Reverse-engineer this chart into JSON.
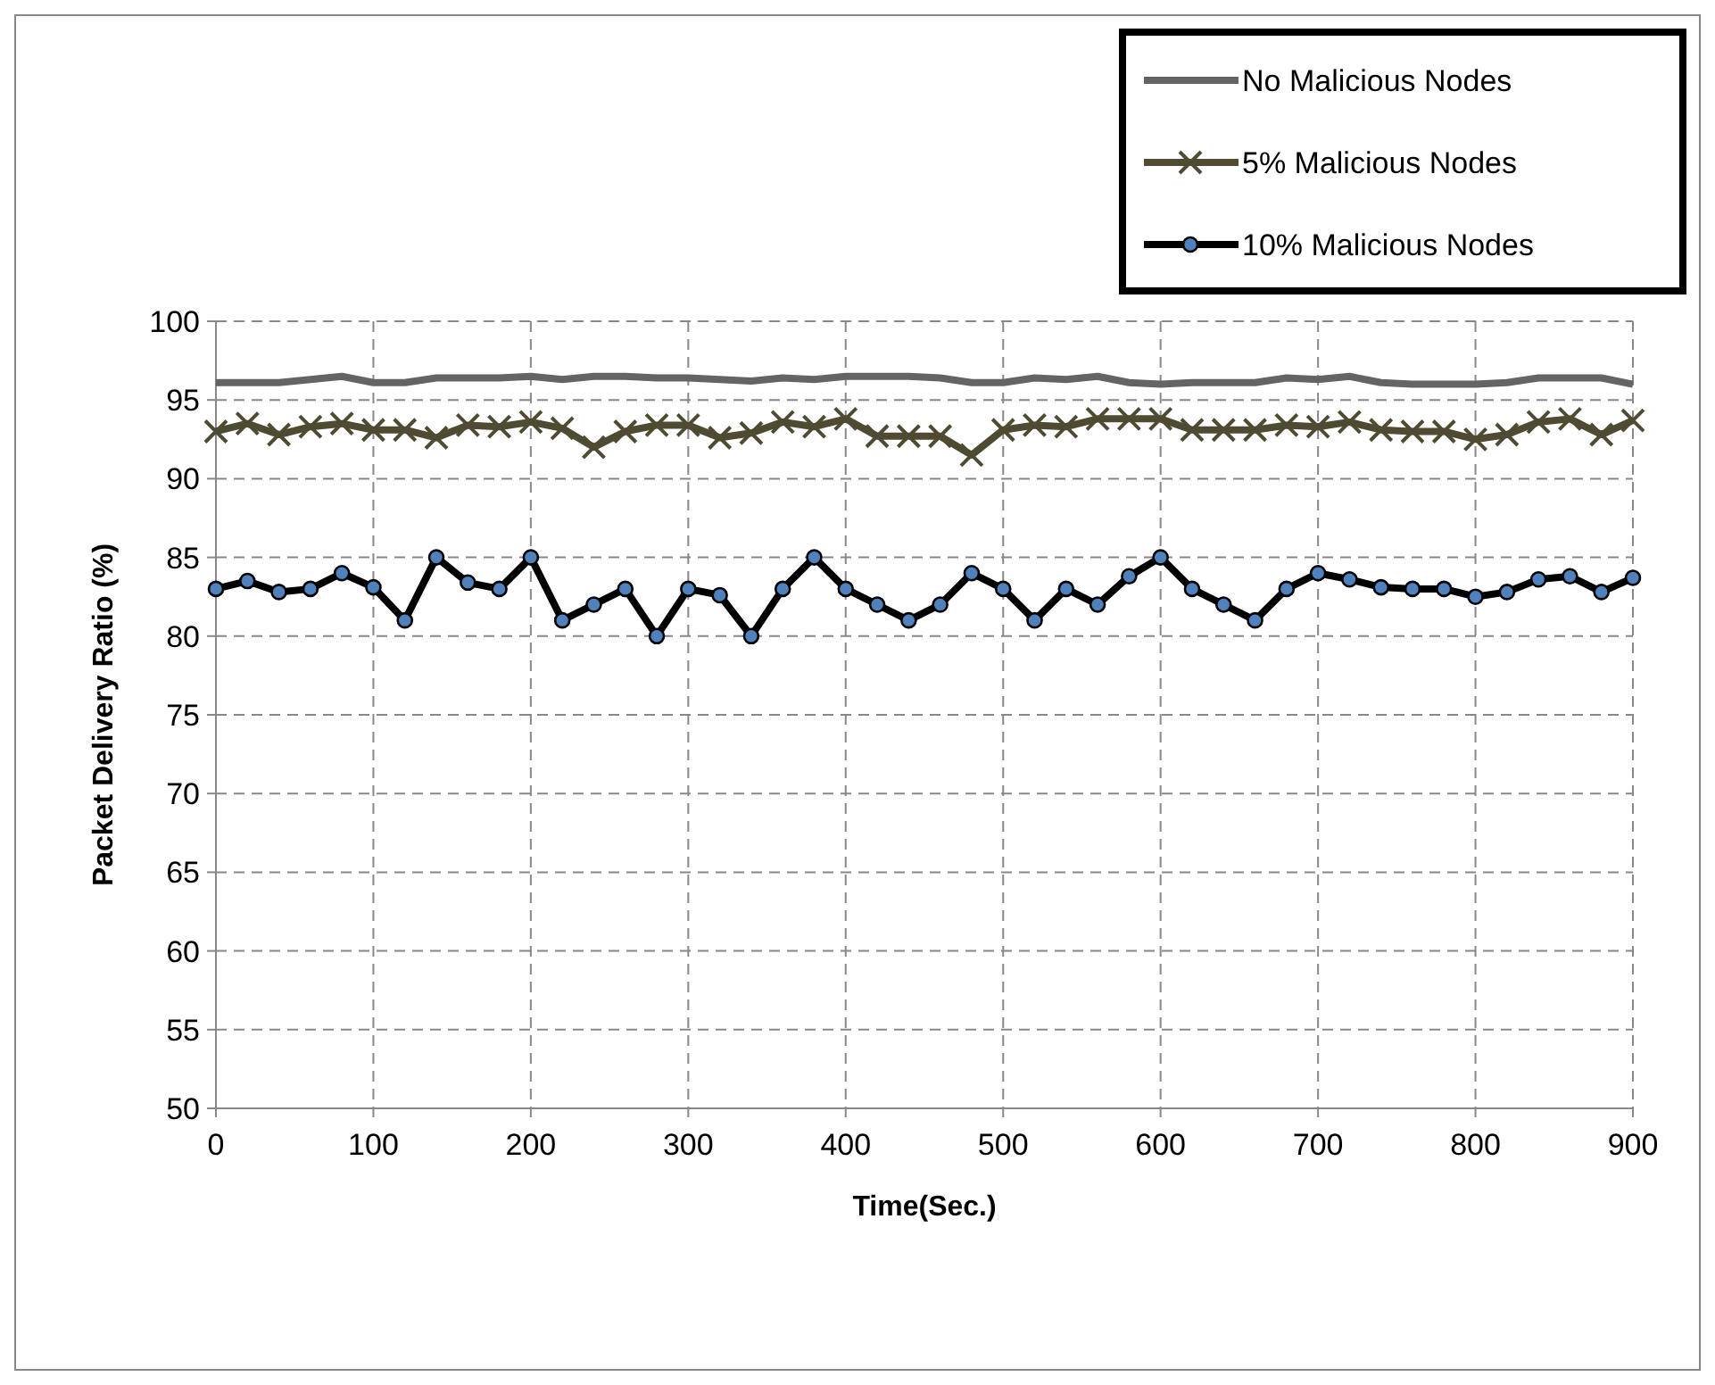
{
  "chart_data": {
    "type": "line",
    "xlabel": "Time(Sec.)",
    "ylabel": "Packet Delivery Ratio (%)",
    "x": [
      0,
      20,
      40,
      60,
      80,
      100,
      120,
      140,
      160,
      180,
      200,
      220,
      240,
      260,
      280,
      300,
      320,
      340,
      360,
      380,
      400,
      420,
      440,
      460,
      480,
      500,
      520,
      540,
      560,
      580,
      600,
      620,
      640,
      660,
      680,
      700,
      720,
      740,
      760,
      780,
      800,
      820,
      840,
      860,
      880,
      900
    ],
    "xlim": [
      0,
      900
    ],
    "xticks": [
      0,
      100,
      200,
      300,
      400,
      500,
      600,
      700,
      800,
      900
    ],
    "ylim": [
      50,
      100
    ],
    "yticks": [
      50,
      55,
      60,
      65,
      70,
      75,
      80,
      85,
      90,
      95,
      100
    ],
    "grid": true,
    "legend": "top right",
    "series": [
      {
        "name": "No Malicious Nodes",
        "color": "#646464",
        "marker": "none",
        "values": [
          96.1,
          96.1,
          96.1,
          96.3,
          96.5,
          96.1,
          96.1,
          96.4,
          96.4,
          96.4,
          96.5,
          96.3,
          96.5,
          96.5,
          96.4,
          96.4,
          96.3,
          96.2,
          96.4,
          96.3,
          96.5,
          96.5,
          96.5,
          96.4,
          96.1,
          96.1,
          96.4,
          96.3,
          96.5,
          96.1,
          96.0,
          96.1,
          96.1,
          96.1,
          96.4,
          96.3,
          96.5,
          96.1,
          96.0,
          96.0,
          96.0,
          96.1,
          96.4,
          96.4,
          96.4,
          96.0
        ]
      },
      {
        "name": "5% Malicious Nodes",
        "color": "#4f4a32",
        "marker": "cross",
        "values": [
          93.0,
          93.5,
          92.8,
          93.3,
          93.5,
          93.1,
          93.1,
          92.6,
          93.4,
          93.3,
          93.6,
          93.2,
          92.0,
          93.0,
          93.4,
          93.4,
          92.6,
          92.9,
          93.6,
          93.3,
          93.8,
          92.7,
          92.7,
          92.7,
          91.5,
          93.1,
          93.4,
          93.3,
          93.8,
          93.8,
          93.8,
          93.1,
          93.1,
          93.1,
          93.4,
          93.3,
          93.6,
          93.1,
          93.0,
          93.0,
          92.5,
          92.8,
          93.6,
          93.8,
          92.8,
          93.7
        ]
      },
      {
        "name": "10% Malicious Nodes",
        "color": "#000000",
        "marker": "circle",
        "values": [
          83,
          83.5,
          82.8,
          83,
          84,
          83.1,
          81,
          85,
          83.4,
          83,
          85,
          81,
          82,
          83,
          80,
          83,
          82.6,
          80,
          83,
          85,
          83,
          82,
          81,
          82,
          84,
          83,
          81,
          83,
          82,
          83.8,
          85,
          83,
          82,
          81,
          83,
          84,
          83.6,
          83.1,
          83,
          83,
          82.5,
          82.8,
          83.6,
          83.8,
          82.8,
          83.7
        ]
      }
    ]
  }
}
